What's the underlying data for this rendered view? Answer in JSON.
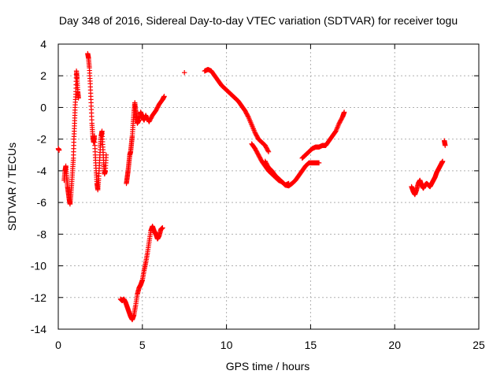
{
  "chart_data": {
    "type": "scatter",
    "title": "Day 348 of 2016, Sidereal Day-to-day VTEC variation (SDTVAR) for receiver togu",
    "xlabel": "GPS time / hours",
    "ylabel": "SDTVAR / TECUs",
    "xlim": [
      0,
      25
    ],
    "ylim": [
      -14,
      4
    ],
    "xticks": [
      0,
      5,
      10,
      15,
      20,
      25
    ],
    "yticks": [
      -14,
      -12,
      -10,
      -8,
      -6,
      -4,
      -2,
      0,
      2,
      4
    ],
    "grid": true,
    "marker": "+",
    "colors": {
      "series": "#ff0000",
      "grid": "#b0b0b0",
      "axis": "#000000"
    },
    "series": [
      {
        "name": "SDTVAR",
        "segments": [
          [
            [
              0.0,
              -2.6
            ],
            [
              0.05,
              -2.7
            ]
          ],
          [
            [
              0.35,
              -4.6
            ],
            [
              0.4,
              -4.0
            ],
            [
              0.45,
              -3.7
            ],
            [
              0.5,
              -4.4
            ],
            [
              0.55,
              -5.0
            ],
            [
              0.6,
              -5.4
            ],
            [
              0.65,
              -5.8
            ],
            [
              0.7,
              -6.1
            ],
            [
              0.75,
              -5.5
            ],
            [
              0.8,
              -4.8
            ],
            [
              0.85,
              -4.0
            ],
            [
              0.9,
              -3.2
            ],
            [
              0.93,
              -2.0
            ],
            [
              0.97,
              -1.0
            ],
            [
              1.0,
              0.0
            ],
            [
              1.05,
              1.0
            ],
            [
              1.08,
              2.3
            ],
            [
              1.12,
              1.8
            ],
            [
              1.16,
              1.0
            ],
            [
              1.2,
              0.6
            ]
          ],
          [
            [
              1.75,
              3.4
            ],
            [
              1.8,
              3.1
            ],
            [
              1.85,
              2.5
            ],
            [
              1.9,
              1.5
            ],
            [
              1.95,
              0.3
            ],
            [
              2.0,
              -1.0
            ],
            [
              2.05,
              -1.8
            ],
            [
              2.1,
              -2.2
            ],
            [
              2.15,
              -1.8
            ],
            [
              2.2,
              -3.0
            ],
            [
              2.25,
              -4.0
            ],
            [
              2.3,
              -4.8
            ],
            [
              2.35,
              -5.2
            ],
            [
              2.4,
              -4.5
            ],
            [
              2.45,
              -3.5
            ],
            [
              2.5,
              -2.5
            ],
            [
              2.55,
              -1.8
            ],
            [
              2.6,
              -1.5
            ],
            [
              2.65,
              -2.5
            ],
            [
              2.7,
              -3.5
            ],
            [
              2.75,
              -4.2
            ],
            [
              2.8,
              -4.0
            ],
            [
              2.85,
              -3.0
            ]
          ],
          [
            [
              4.05,
              -4.8
            ],
            [
              4.1,
              -4.4
            ],
            [
              4.15,
              -4.0
            ],
            [
              4.2,
              -3.5
            ],
            [
              4.25,
              -3.0
            ],
            [
              4.3,
              -2.8
            ],
            [
              4.35,
              -2.3
            ],
            [
              4.4,
              -1.8
            ],
            [
              4.45,
              -1.0
            ],
            [
              4.5,
              -0.3
            ],
            [
              4.55,
              0.3
            ],
            [
              4.6,
              -0.2
            ],
            [
              4.65,
              -0.6
            ],
            [
              4.7,
              -1.0
            ],
            [
              4.8,
              -0.8
            ],
            [
              4.9,
              -0.3
            ],
            [
              5.0,
              -0.6
            ],
            [
              5.1,
              -0.8
            ],
            [
              5.2,
              -0.5
            ],
            [
              5.4,
              -0.9
            ],
            [
              5.6,
              -0.5
            ],
            [
              5.8,
              -0.2
            ],
            [
              6.0,
              0.2
            ],
            [
              6.2,
              0.5
            ],
            [
              6.3,
              0.7
            ]
          ],
          [
            [
              3.7,
              -12.1
            ],
            [
              3.8,
              -12.2
            ],
            [
              3.9,
              -12.1
            ],
            [
              4.0,
              -12.3
            ],
            [
              4.1,
              -12.6
            ],
            [
              4.2,
              -12.9
            ],
            [
              4.3,
              -13.2
            ],
            [
              4.4,
              -13.4
            ],
            [
              4.5,
              -13.1
            ],
            [
              4.6,
              -12.5
            ],
            [
              4.7,
              -11.8
            ],
            [
              4.8,
              -11.4
            ],
            [
              4.9,
              -11.2
            ],
            [
              5.0,
              -10.9
            ],
            [
              5.1,
              -10.3
            ],
            [
              5.2,
              -9.8
            ],
            [
              5.3,
              -9.2
            ],
            [
              5.4,
              -8.5
            ],
            [
              5.5,
              -7.8
            ],
            [
              5.6,
              -7.5
            ],
            [
              5.7,
              -7.8
            ],
            [
              5.8,
              -8.0
            ],
            [
              5.9,
              -8.3
            ],
            [
              6.0,
              -8.1
            ],
            [
              6.1,
              -7.7
            ],
            [
              6.2,
              -7.6
            ]
          ],
          [
            [
              7.5,
              2.2
            ]
          ],
          [
            [
              8.7,
              2.3
            ],
            [
              8.9,
              2.4
            ],
            [
              9.1,
              2.3
            ],
            [
              9.3,
              2.0
            ],
            [
              9.5,
              1.7
            ],
            [
              9.7,
              1.4
            ],
            [
              9.9,
              1.2
            ],
            [
              10.1,
              1.0
            ],
            [
              10.3,
              0.8
            ],
            [
              10.5,
              0.6
            ],
            [
              10.7,
              0.4
            ],
            [
              10.9,
              0.1
            ],
            [
              11.1,
              -0.2
            ],
            [
              11.3,
              -0.6
            ],
            [
              11.5,
              -1.1
            ],
            [
              11.7,
              -1.6
            ],
            [
              11.9,
              -2.0
            ],
            [
              12.1,
              -2.2
            ],
            [
              12.3,
              -2.4
            ],
            [
              12.5,
              -2.8
            ]
          ],
          [
            [
              11.5,
              -2.3
            ],
            [
              11.7,
              -2.6
            ],
            [
              11.9,
              -3.0
            ],
            [
              12.1,
              -3.4
            ],
            [
              12.3,
              -3.7
            ],
            [
              12.5,
              -4.0
            ],
            [
              12.7,
              -4.2
            ],
            [
              12.9,
              -4.4
            ],
            [
              13.1,
              -4.6
            ],
            [
              13.3,
              -4.7
            ],
            [
              13.5,
              -4.9
            ],
            [
              13.7,
              -4.95
            ],
            [
              13.9,
              -4.8
            ],
            [
              14.1,
              -4.6
            ],
            [
              14.3,
              -4.3
            ],
            [
              14.5,
              -4.0
            ],
            [
              14.7,
              -3.7
            ],
            [
              14.9,
              -3.5
            ],
            [
              15.1,
              -3.5
            ],
            [
              15.3,
              -3.5
            ],
            [
              15.5,
              -3.5
            ]
          ],
          [
            [
              12.3,
              -3.4
            ],
            [
              12.5,
              -3.8
            ],
            [
              12.7,
              -4.0
            ],
            [
              12.9,
              -4.3
            ],
            [
              13.1,
              -4.5
            ],
            [
              13.3,
              -4.7
            ],
            [
              13.5,
              -4.9
            ],
            [
              13.7,
              -4.8
            ]
          ],
          [
            [
              14.5,
              -3.2
            ],
            [
              14.7,
              -3.0
            ],
            [
              14.9,
              -2.8
            ],
            [
              15.1,
              -2.6
            ],
            [
              15.3,
              -2.5
            ],
            [
              15.5,
              -2.5
            ],
            [
              15.7,
              -2.4
            ],
            [
              15.9,
              -2.4
            ],
            [
              16.1,
              -2.1
            ],
            [
              16.3,
              -1.8
            ],
            [
              16.5,
              -1.5
            ],
            [
              16.7,
              -1.0
            ],
            [
              16.9,
              -0.6
            ],
            [
              17.0,
              -0.3
            ]
          ],
          [
            [
              21.0,
              -5.0
            ],
            [
              21.1,
              -5.3
            ],
            [
              21.2,
              -5.5
            ],
            [
              21.3,
              -5.2
            ],
            [
              21.4,
              -4.8
            ],
            [
              21.5,
              -4.6
            ],
            [
              21.6,
              -4.9
            ],
            [
              21.7,
              -5.1
            ],
            [
              21.8,
              -4.9
            ],
            [
              21.9,
              -4.8
            ],
            [
              22.0,
              -4.9
            ],
            [
              22.1,
              -5.0
            ],
            [
              22.2,
              -4.8
            ],
            [
              22.3,
              -4.6
            ],
            [
              22.4,
              -4.4
            ],
            [
              22.5,
              -4.1
            ],
            [
              22.6,
              -3.9
            ],
            [
              22.7,
              -3.7
            ],
            [
              22.8,
              -3.5
            ],
            [
              22.85,
              -3.4
            ]
          ],
          [
            [
              22.95,
              -2.1
            ],
            [
              23.0,
              -2.4
            ]
          ]
        ]
      }
    ]
  }
}
